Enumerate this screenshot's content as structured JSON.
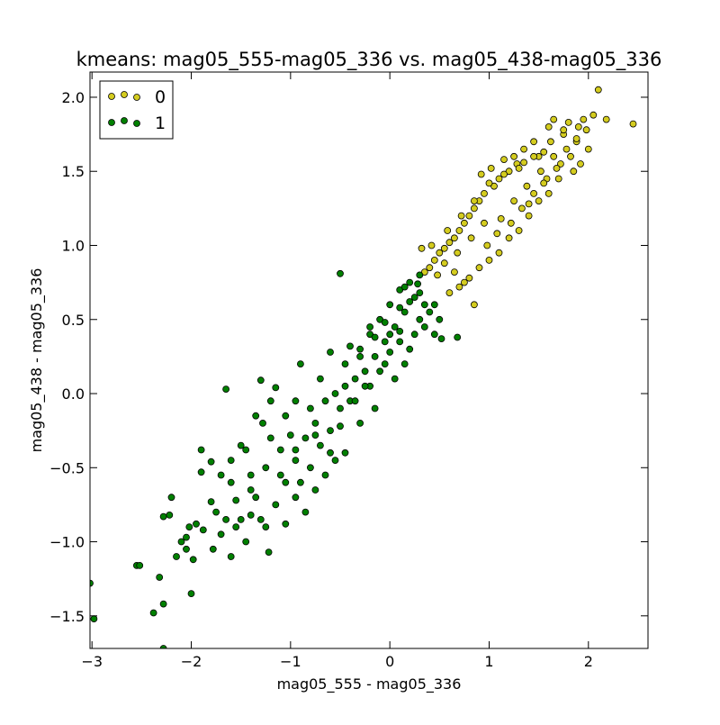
{
  "chart_data": {
    "type": "scatter",
    "title": "kmeans: mag05_555-mag05_336 vs. mag05_438-mag05_336",
    "xlabel": "mag05_555 - mag05_336",
    "ylabel": "mag05_438 - mag05_336",
    "xlim": [
      -3.02,
      2.6
    ],
    "ylim": [
      -1.72,
      2.17
    ],
    "xticks": [
      -3,
      -2,
      -1,
      0,
      1,
      2
    ],
    "yticks": [
      -1.5,
      -1.0,
      -0.5,
      0.0,
      0.5,
      1.0,
      1.5,
      2.0
    ],
    "xtick_labels": [
      "−3",
      "−2",
      "−1",
      "0",
      "1",
      "2"
    ],
    "ytick_labels": [
      "−1.5",
      "−1.0",
      "−0.5",
      "0.0",
      "0.5",
      "1.0",
      "1.5",
      "2.0"
    ],
    "grid": false,
    "legend_position": "top-left",
    "series": [
      {
        "name": "0",
        "color": "#d4cc1f",
        "points": [
          [
            2.1,
            2.05
          ],
          [
            2.45,
            1.82
          ],
          [
            2.18,
            1.85
          ],
          [
            2.05,
            1.88
          ],
          [
            1.95,
            1.85
          ],
          [
            1.8,
            1.83
          ],
          [
            1.6,
            1.8
          ],
          [
            1.55,
            1.63
          ],
          [
            1.5,
            1.6
          ],
          [
            1.35,
            1.56
          ],
          [
            1.28,
            1.55
          ],
          [
            1.2,
            1.5
          ],
          [
            1.1,
            1.45
          ],
          [
            1.05,
            1.4
          ],
          [
            0.95,
            1.35
          ],
          [
            0.9,
            1.3
          ],
          [
            0.85,
            1.25
          ],
          [
            0.8,
            1.2
          ],
          [
            0.75,
            1.15
          ],
          [
            0.7,
            1.1
          ],
          [
            0.65,
            1.05
          ],
          [
            0.6,
            1.02
          ],
          [
            0.55,
            0.98
          ],
          [
            0.5,
            0.95
          ],
          [
            0.45,
            0.9
          ],
          [
            0.4,
            0.85
          ],
          [
            0.35,
            0.82
          ],
          [
            0.32,
            0.98
          ],
          [
            0.42,
            1.0
          ],
          [
            0.58,
            1.1
          ],
          [
            0.72,
            1.2
          ],
          [
            0.85,
            1.3
          ],
          [
            1.0,
            1.42
          ],
          [
            1.15,
            1.48
          ],
          [
            1.3,
            1.52
          ],
          [
            1.45,
            1.6
          ],
          [
            1.62,
            1.7
          ],
          [
            1.75,
            1.75
          ],
          [
            1.9,
            1.8
          ],
          [
            2.0,
            1.65
          ],
          [
            1.92,
            1.55
          ],
          [
            1.85,
            1.5
          ],
          [
            1.7,
            1.45
          ],
          [
            1.6,
            1.35
          ],
          [
            1.5,
            1.3
          ],
          [
            1.4,
            1.2
          ],
          [
            1.3,
            1.1
          ],
          [
            1.2,
            1.05
          ],
          [
            1.1,
            0.95
          ],
          [
            1.0,
            0.9
          ],
          [
            0.9,
            0.85
          ],
          [
            0.8,
            0.78
          ],
          [
            0.7,
            0.72
          ],
          [
            0.6,
            0.68
          ],
          [
            0.85,
            0.6
          ],
          [
            0.75,
            0.75
          ],
          [
            0.65,
            0.82
          ],
          [
            0.98,
            1.0
          ],
          [
            1.12,
            1.18
          ],
          [
            1.25,
            1.3
          ],
          [
            1.38,
            1.4
          ],
          [
            1.52,
            1.5
          ],
          [
            1.65,
            1.6
          ],
          [
            1.78,
            1.65
          ],
          [
            1.88,
            1.7
          ],
          [
            1.72,
            1.55
          ],
          [
            1.58,
            1.45
          ],
          [
            1.45,
            1.35
          ],
          [
            1.33,
            1.25
          ],
          [
            1.22,
            1.15
          ],
          [
            1.08,
            1.08
          ],
          [
            0.95,
            1.15
          ],
          [
            0.82,
            1.05
          ],
          [
            0.68,
            0.95
          ],
          [
            0.55,
            0.88
          ],
          [
            0.48,
            0.8
          ],
          [
            1.65,
            1.85
          ],
          [
            1.75,
            1.78
          ],
          [
            1.45,
            1.7
          ],
          [
            1.35,
            1.65
          ],
          [
            1.25,
            1.6
          ],
          [
            1.15,
            1.58
          ],
          [
            1.02,
            1.52
          ],
          [
            0.92,
            1.48
          ],
          [
            1.4,
            1.28
          ],
          [
            1.55,
            1.42
          ],
          [
            1.68,
            1.52
          ],
          [
            1.82,
            1.6
          ],
          [
            1.98,
            1.78
          ],
          [
            1.88,
            1.72
          ]
        ]
      },
      {
        "name": "1",
        "color": "#008000",
        "points": [
          [
            -3.02,
            -1.28
          ],
          [
            -2.98,
            -1.52
          ],
          [
            -2.28,
            -1.72
          ],
          [
            -2.38,
            -1.48
          ],
          [
            -2.28,
            -1.42
          ],
          [
            -2.0,
            -1.35
          ],
          [
            -2.55,
            -1.16
          ],
          [
            -2.52,
            -1.16
          ],
          [
            -2.32,
            -1.24
          ],
          [
            -2.28,
            -0.83
          ],
          [
            -2.22,
            -0.82
          ],
          [
            -2.2,
            -0.7
          ],
          [
            -2.02,
            -0.9
          ],
          [
            -2.1,
            -1.0
          ],
          [
            -2.05,
            -1.05
          ],
          [
            -1.98,
            -1.12
          ],
          [
            -1.95,
            -0.88
          ],
          [
            -1.9,
            -0.38
          ],
          [
            -1.9,
            -0.53
          ],
          [
            -1.8,
            -0.46
          ],
          [
            -1.8,
            -0.73
          ],
          [
            -1.75,
            -0.8
          ],
          [
            -1.7,
            -0.95
          ],
          [
            -1.65,
            -0.85
          ],
          [
            -1.65,
            0.03
          ],
          [
            -1.6,
            -0.6
          ],
          [
            -1.55,
            -0.9
          ],
          [
            -1.5,
            -0.85
          ],
          [
            -1.45,
            -0.38
          ],
          [
            -1.4,
            -0.55
          ],
          [
            -1.35,
            -0.7
          ],
          [
            -1.3,
            -0.85
          ],
          [
            -1.28,
            -0.2
          ],
          [
            -1.22,
            -1.07
          ],
          [
            -1.2,
            -0.3
          ],
          [
            -1.15,
            -0.75
          ],
          [
            -1.1,
            -0.38
          ],
          [
            -1.05,
            -0.6
          ],
          [
            -1.0,
            -0.28
          ],
          [
            -0.95,
            -0.45
          ],
          [
            -0.9,
            -0.6
          ],
          [
            -0.85,
            -0.3
          ],
          [
            -0.8,
            -0.5
          ],
          [
            -0.75,
            -0.2
          ],
          [
            -0.7,
            -0.35
          ],
          [
            -0.65,
            -0.05
          ],
          [
            -0.6,
            -0.25
          ],
          [
            -0.55,
            0.0
          ],
          [
            -0.5,
            -0.1
          ],
          [
            -0.5,
            0.81
          ],
          [
            -0.45,
            0.2
          ],
          [
            -0.4,
            -0.05
          ],
          [
            -0.35,
            0.1
          ],
          [
            -0.3,
            0.3
          ],
          [
            -0.25,
            0.15
          ],
          [
            -0.2,
            0.4
          ],
          [
            -0.15,
            0.25
          ],
          [
            -0.1,
            0.5
          ],
          [
            -0.05,
            0.35
          ],
          [
            0.0,
            0.6
          ],
          [
            0.05,
            0.45
          ],
          [
            0.1,
            0.7
          ],
          [
            0.15,
            0.55
          ],
          [
            0.2,
            0.75
          ],
          [
            0.25,
            0.65
          ],
          [
            0.3,
            0.8
          ],
          [
            0.35,
            0.6
          ],
          [
            0.4,
            0.55
          ],
          [
            0.45,
            0.4
          ],
          [
            0.5,
            0.5
          ],
          [
            0.52,
            0.37
          ],
          [
            0.68,
            0.38
          ],
          [
            -1.3,
            0.09
          ],
          [
            -1.15,
            0.04
          ],
          [
            -0.9,
            0.2
          ],
          [
            -0.7,
            0.1
          ],
          [
            -0.6,
            0.28
          ],
          [
            -0.4,
            0.32
          ],
          [
            -0.2,
            0.05
          ],
          [
            -0.1,
            0.15
          ],
          [
            0.0,
            0.28
          ],
          [
            0.1,
            0.42
          ],
          [
            0.2,
            0.3
          ],
          [
            0.3,
            0.5
          ],
          [
            -1.5,
            -0.35
          ],
          [
            -1.35,
            -0.15
          ],
          [
            -1.2,
            -0.05
          ],
          [
            -1.05,
            -0.15
          ],
          [
            -0.95,
            -0.05
          ],
          [
            -0.8,
            -0.1
          ],
          [
            -0.6,
            -0.4
          ],
          [
            -0.45,
            -0.4
          ],
          [
            -0.3,
            -0.2
          ],
          [
            -0.15,
            -0.1
          ],
          [
            0.05,
            0.1
          ],
          [
            0.15,
            0.2
          ],
          [
            -1.7,
            -0.55
          ],
          [
            -1.6,
            -0.45
          ],
          [
            -1.4,
            -0.65
          ],
          [
            -1.25,
            -0.5
          ],
          [
            -1.1,
            -0.55
          ],
          [
            -0.95,
            -0.7
          ],
          [
            -0.85,
            -0.8
          ],
          [
            -0.75,
            -0.65
          ],
          [
            -0.65,
            -0.55
          ],
          [
            -0.55,
            -0.45
          ],
          [
            -2.15,
            -1.1
          ],
          [
            -2.05,
            -0.97
          ],
          [
            -1.88,
            -0.92
          ],
          [
            -1.78,
            -1.05
          ],
          [
            -1.6,
            -1.1
          ],
          [
            -1.45,
            -1.0
          ],
          [
            -1.55,
            -0.72
          ],
          [
            -1.4,
            -0.82
          ],
          [
            -1.25,
            -0.9
          ],
          [
            -1.05,
            -0.88
          ],
          [
            -0.95,
            -0.38
          ],
          [
            -0.75,
            -0.28
          ],
          [
            -0.5,
            -0.22
          ],
          [
            -0.35,
            -0.05
          ],
          [
            -0.25,
            0.05
          ],
          [
            -0.05,
            0.2
          ],
          [
            0.1,
            0.35
          ],
          [
            0.25,
            0.4
          ],
          [
            0.35,
            0.45
          ],
          [
            0.45,
            0.6
          ],
          [
            0.3,
            0.68
          ],
          [
            0.2,
            0.62
          ],
          [
            0.1,
            0.58
          ],
          [
            -0.05,
            0.48
          ],
          [
            -0.15,
            0.38
          ],
          [
            -0.3,
            0.25
          ],
          [
            -0.45,
            0.05
          ],
          [
            -0.2,
            0.45
          ],
          [
            0.0,
            0.4
          ],
          [
            0.15,
            0.72
          ],
          [
            0.28,
            0.74
          ]
        ]
      }
    ]
  }
}
